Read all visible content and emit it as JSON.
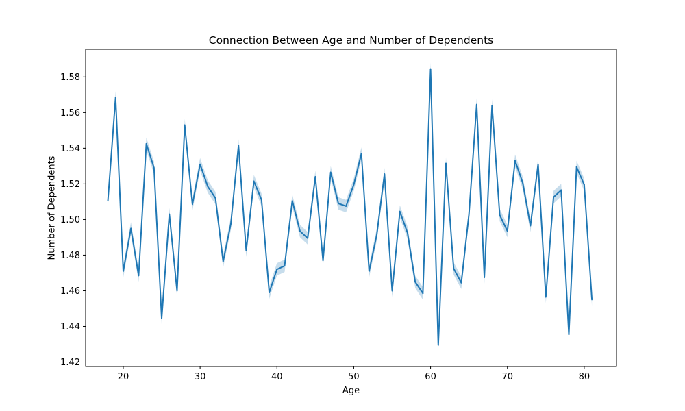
{
  "chart_data": {
    "type": "line",
    "title": "Connection Between Age and Number of Dependents",
    "xlabel": "Age",
    "ylabel": "Number of Dependents",
    "xlim": [
      15.1,
      84.2
    ],
    "ylim": [
      1.4175,
      1.5955
    ],
    "xticks": [
      20,
      30,
      40,
      50,
      60,
      70,
      80
    ],
    "yticks": [
      1.42,
      1.44,
      1.46,
      1.48,
      1.5,
      1.52,
      1.54,
      1.56,
      1.58
    ],
    "ytick_labels": [
      "1.42",
      "1.44",
      "1.46",
      "1.48",
      "1.50",
      "1.52",
      "1.54",
      "1.56",
      "1.58"
    ],
    "grid": false,
    "colors": {
      "line": "#1f77b4",
      "band": "#1f77b4"
    },
    "series": [
      {
        "x": [
          18,
          19,
          20,
          21,
          22,
          23,
          24,
          25,
          26,
          27,
          28,
          29,
          30,
          31,
          32,
          33,
          34,
          35,
          36,
          37,
          38,
          39,
          40,
          41,
          42,
          43,
          44,
          45,
          46,
          47,
          48,
          49,
          50,
          51,
          52,
          53,
          54,
          55,
          56,
          57,
          58,
          59,
          60,
          61,
          62,
          63,
          64,
          65,
          66,
          67,
          68,
          69,
          70,
          71,
          72,
          73,
          74,
          75,
          76,
          77,
          78,
          79,
          80,
          81
        ],
        "y": [
          1.5105,
          1.5685,
          1.471,
          1.495,
          1.4685,
          1.5425,
          1.529,
          1.4445,
          1.503,
          1.46,
          1.553,
          1.5085,
          1.531,
          1.5185,
          1.512,
          1.4765,
          1.4975,
          1.5415,
          1.4825,
          1.5215,
          1.511,
          1.459,
          1.472,
          1.474,
          1.5105,
          1.4935,
          1.4895,
          1.524,
          1.477,
          1.5265,
          1.509,
          1.5075,
          1.5195,
          1.537,
          1.471,
          1.4915,
          1.5255,
          1.46,
          1.5045,
          1.4925,
          1.465,
          1.4585,
          1.5845,
          1.4295,
          1.5315,
          1.4725,
          1.4645,
          1.503,
          1.5645,
          1.4675,
          1.564,
          1.5025,
          1.4935,
          1.533,
          1.5205,
          1.4965,
          1.531,
          1.4565,
          1.5125,
          1.5165,
          1.4355,
          1.5295,
          1.5195,
          1.455
        ],
        "ci_half_width": [
          0.0035,
          0.0035,
          0.0035,
          0.0035,
          0.0035,
          0.0035,
          0.0035,
          0.0035,
          0.0035,
          0.0035,
          0.0035,
          0.0035,
          0.0035,
          0.0035,
          0.0035,
          0.0035,
          0.0035,
          0.0035,
          0.0035,
          0.0035,
          0.0035,
          0.0035,
          0.0035,
          0.0035,
          0.0035,
          0.0035,
          0.0035,
          0.0035,
          0.0035,
          0.0035,
          0.0035,
          0.0035,
          0.0035,
          0.0035,
          0.0035,
          0.0035,
          0.0035,
          0.0035,
          0.0035,
          0.0035,
          0.0035,
          0.0035,
          0.0035,
          0.0035,
          0.0035,
          0.0035,
          0.0035,
          0.0035,
          0.0035,
          0.0035,
          0.0035,
          0.0035,
          0.0035,
          0.0035,
          0.0035,
          0.0035,
          0.0035,
          0.0035,
          0.0035,
          0.0035,
          0.0035,
          0.0035,
          0.0035,
          0.0035
        ]
      }
    ]
  }
}
